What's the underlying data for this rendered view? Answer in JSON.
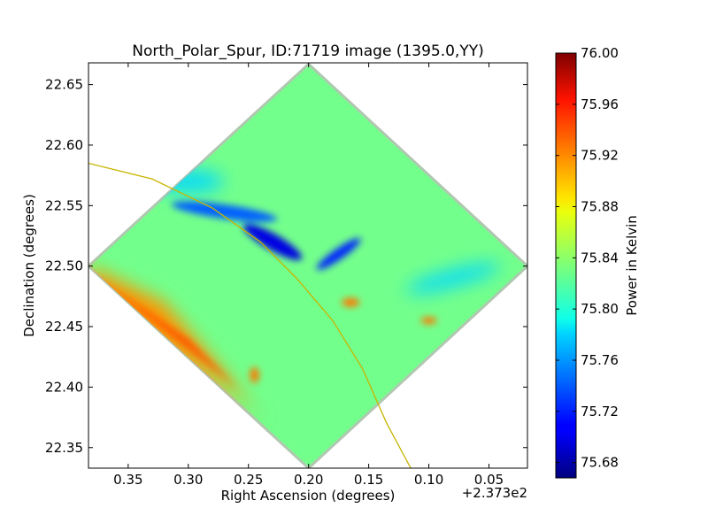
{
  "chart_data": {
    "type": "heatmap",
    "title": "North_Polar_Spur, ID:71719 image (1395.0,YY)",
    "xlabel": "Right Ascension (degrees)",
    "ylabel": "Declination (degrees)",
    "x_offset_label": "+2.373e2",
    "xlim": [
      0.383,
      0.018
    ],
    "ylim": [
      22.333,
      22.668
    ],
    "x_ticks": [
      0.35,
      0.3,
      0.25,
      0.2,
      0.15,
      0.1,
      0.05
    ],
    "x_tick_labels": [
      "0.35",
      "0.30",
      "0.25",
      "0.20",
      "0.15",
      "0.10",
      "0.05"
    ],
    "y_ticks": [
      22.35,
      22.4,
      22.45,
      22.5,
      22.55,
      22.6,
      22.65
    ],
    "y_tick_labels": [
      "22.35",
      "22.40",
      "22.45",
      "22.50",
      "22.55",
      "22.60",
      "22.65"
    ],
    "colorbar": {
      "label": "Power in Kelvin",
      "min": 75.668,
      "max": 76.0,
      "ticks": [
        75.68,
        75.72,
        75.76,
        75.8,
        75.84,
        75.88,
        75.92,
        75.96,
        76.0
      ],
      "tick_labels": [
        "75.68",
        "75.72",
        "75.76",
        "75.80",
        "75.84",
        "75.88",
        "75.92",
        "75.96",
        "76.00"
      ],
      "colormap": "jet"
    },
    "image_footprint": {
      "shape": "diamond",
      "corners_ra_dec": [
        [
          0.2,
          22.667
        ],
        [
          0.018,
          22.5
        ],
        [
          0.2,
          22.333
        ],
        [
          0.383,
          22.5
        ]
      ],
      "dominant_value": 75.83,
      "features": [
        {
          "region": "lower-left edge",
          "value": 75.91
        },
        {
          "region": "upper-left arm",
          "value": 75.74
        },
        {
          "region": "central cross",
          "value": 75.7
        },
        {
          "region": "upper-right arm",
          "value": 75.73
        },
        {
          "region": "right arm",
          "value": 75.78
        }
      ]
    },
    "overlay_curve": {
      "color": "#c8b400",
      "points_ra_dec": [
        [
          0.383,
          22.585
        ],
        [
          0.33,
          22.572
        ],
        [
          0.28,
          22.548
        ],
        [
          0.24,
          22.52
        ],
        [
          0.21,
          22.49
        ],
        [
          0.18,
          22.455
        ],
        [
          0.155,
          22.415
        ],
        [
          0.135,
          22.37
        ],
        [
          0.115,
          22.333
        ]
      ]
    }
  }
}
